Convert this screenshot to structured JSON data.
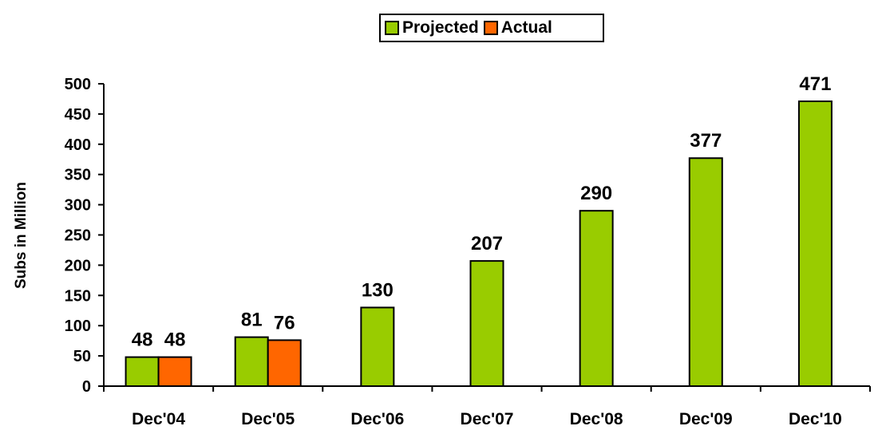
{
  "chart_data": {
    "type": "bar",
    "title": "",
    "xlabel": "",
    "ylabel": "Subs in Million",
    "ylim": [
      0,
      500
    ],
    "yticks": [
      0,
      50,
      100,
      150,
      200,
      250,
      300,
      350,
      400,
      450,
      500
    ],
    "grid": false,
    "legend_position": "top-center",
    "categories": [
      "Dec'04",
      "Dec'05",
      "Dec'06",
      "Dec'07",
      "Dec'08",
      "Dec'09",
      "Dec'10"
    ],
    "series": [
      {
        "name": "Projected",
        "color": "#99cc00",
        "values": [
          48,
          81,
          130,
          207,
          290,
          377,
          471
        ]
      },
      {
        "name": "Actual",
        "color": "#ff6600",
        "values": [
          48,
          76,
          null,
          null,
          null,
          null,
          null
        ]
      }
    ]
  }
}
